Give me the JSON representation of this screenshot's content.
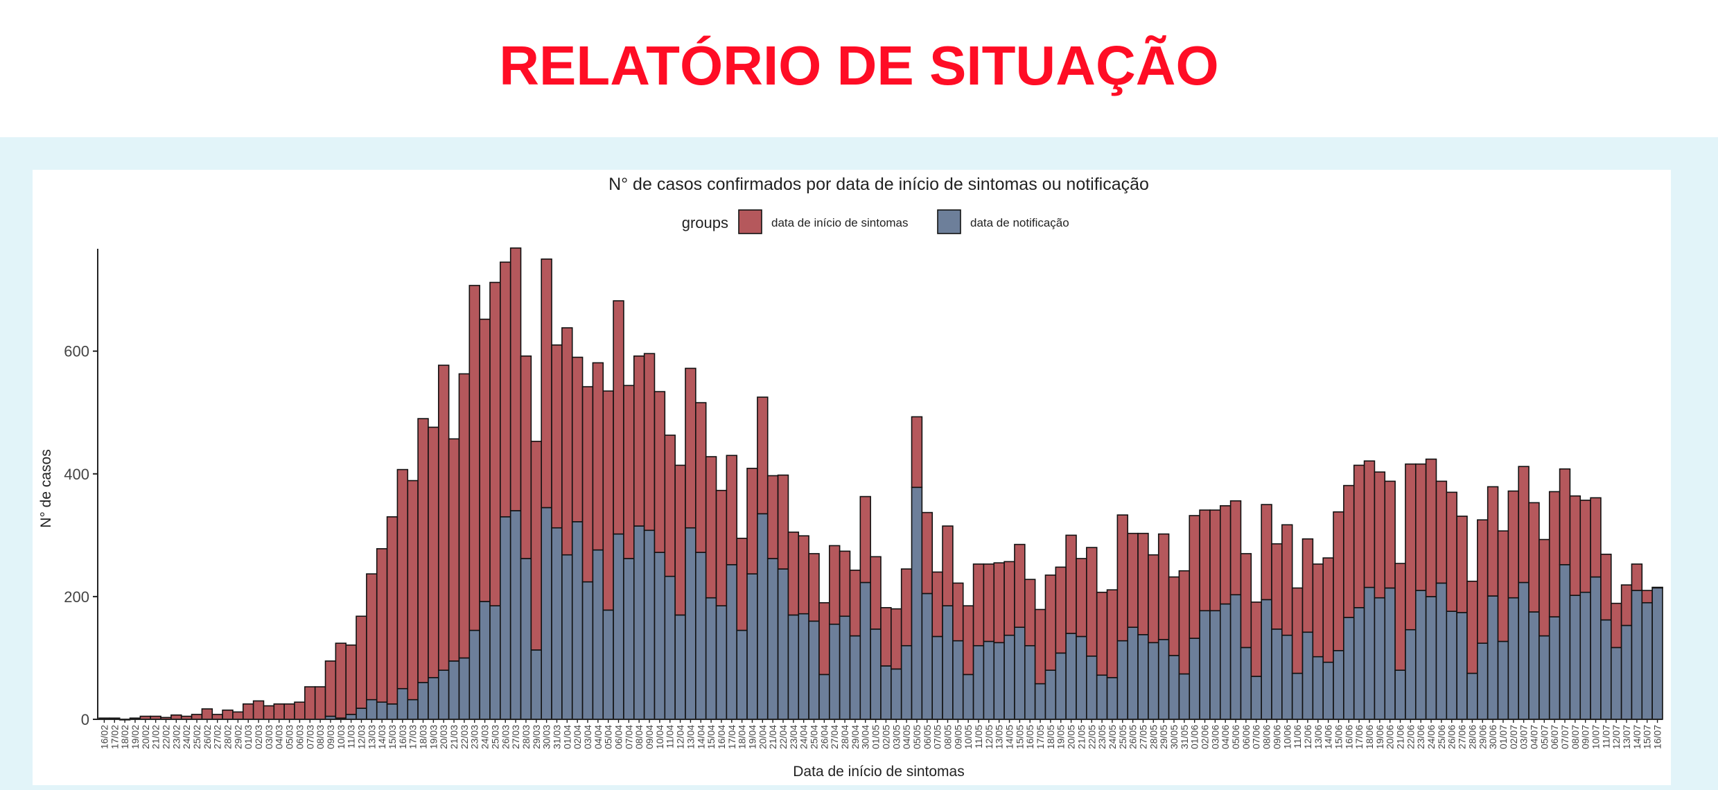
{
  "page": {
    "title": "RELATÓRIO DE SITUAÇÃO"
  },
  "colors": {
    "title": "#ff0d25",
    "band": "#e2f4f9",
    "sintomas": "#b5585c",
    "notificacao": "#6d7f9a",
    "bar_stroke": "#111111"
  },
  "chart_data": {
    "type": "bar",
    "stacked": true,
    "title": "N° de casos confirmados por data de início de sintomas ou notificação",
    "xlabel": "Data de início de sintomas",
    "ylabel": "N° de casos",
    "ylim": [
      0,
      760
    ],
    "yticks": [
      0,
      200,
      400,
      600
    ],
    "grid": false,
    "legend": {
      "position": "top",
      "title": "groups"
    },
    "categories": [
      "16/02",
      "17/02",
      "18/02",
      "19/02",
      "20/02",
      "21/02",
      "22/02",
      "23/02",
      "24/02",
      "25/02",
      "26/02",
      "27/02",
      "28/02",
      "29/02",
      "01/03",
      "02/03",
      "03/03",
      "04/03",
      "05/03",
      "06/03",
      "07/03",
      "08/03",
      "09/03",
      "10/03",
      "11/03",
      "12/03",
      "13/03",
      "14/03",
      "15/03",
      "16/03",
      "17/03",
      "18/03",
      "19/03",
      "20/03",
      "21/03",
      "22/03",
      "23/03",
      "24/03",
      "25/03",
      "26/03",
      "27/03",
      "28/03",
      "29/03",
      "30/03",
      "31/03",
      "01/04",
      "02/04",
      "03/04",
      "04/04",
      "05/04",
      "06/04",
      "07/04",
      "08/04",
      "09/04",
      "10/04",
      "11/04",
      "12/04",
      "13/04",
      "14/04",
      "15/04",
      "16/04",
      "17/04",
      "18/04",
      "19/04",
      "20/04",
      "21/04",
      "22/04",
      "23/04",
      "24/04",
      "25/04",
      "26/04",
      "27/04",
      "28/04",
      "29/04",
      "30/04",
      "01/05",
      "02/05",
      "03/05",
      "04/05",
      "05/05",
      "06/05",
      "07/05",
      "08/05",
      "09/05",
      "10/05",
      "11/05",
      "12/05",
      "13/05",
      "14/05",
      "15/05",
      "16/05",
      "17/05",
      "18/05",
      "19/05",
      "20/05",
      "21/05",
      "22/05",
      "23/05",
      "24/05",
      "25/05",
      "26/05",
      "27/05",
      "28/05",
      "29/05",
      "30/05",
      "31/05",
      "01/06",
      "02/06",
      "03/06",
      "04/06",
      "05/06",
      "06/06",
      "07/06",
      "08/06",
      "09/06",
      "10/06",
      "11/06",
      "12/06",
      "13/06",
      "14/06",
      "15/06",
      "16/06",
      "17/06",
      "18/06",
      "19/06",
      "20/06",
      "21/06",
      "22/06",
      "23/06",
      "24/06",
      "25/06",
      "26/06",
      "27/06",
      "28/06",
      "29/06",
      "30/06",
      "01/07",
      "02/07",
      "03/07",
      "04/07",
      "05/07",
      "06/07",
      "07/07",
      "08/07",
      "09/07",
      "10/07",
      "11/07",
      "12/07",
      "13/07",
      "14/07",
      "15/07",
      "16/07"
    ],
    "series": [
      {
        "name": "data de notificação",
        "color": "#6d7f9a",
        "values": [
          0,
          0,
          0,
          0,
          0,
          0,
          0,
          0,
          0,
          0,
          0,
          0,
          0,
          0,
          0,
          0,
          0,
          0,
          0,
          0,
          0,
          0,
          5,
          2,
          8,
          18,
          32,
          28,
          25,
          50,
          32,
          60,
          68,
          80,
          95,
          100,
          145,
          192,
          185,
          330,
          340,
          262,
          113,
          345,
          312,
          268,
          322,
          224,
          276,
          178,
          302,
          262,
          315,
          308,
          272,
          233,
          170,
          312,
          272,
          198,
          185,
          252,
          145,
          237,
          335,
          262,
          245,
          170,
          172,
          160,
          73,
          155,
          168,
          136,
          223,
          147,
          87,
          82,
          120,
          378,
          205,
          135,
          185,
          128,
          73,
          120,
          127,
          125,
          137,
          150,
          120,
          58,
          80,
          108,
          140,
          135,
          103,
          72,
          68,
          128,
          150,
          138,
          125,
          130,
          104,
          74,
          132,
          177,
          177,
          188,
          203,
          117,
          70,
          195,
          147,
          137,
          75,
          142,
          102,
          93,
          112,
          166,
          182,
          215,
          198,
          214,
          80,
          146,
          210,
          200,
          222,
          176,
          174,
          75,
          124,
          201,
          127,
          198,
          223,
          175,
          136,
          167,
          252,
          202,
          207,
          232,
          162,
          117,
          153,
          210,
          190,
          215
        ]
      },
      {
        "name": "data de início de sintomas",
        "color": "#b5585c",
        "values": [
          2,
          2,
          0,
          2,
          5,
          5,
          3,
          7,
          5,
          8,
          17,
          8,
          15,
          12,
          25,
          30,
          22,
          25,
          25,
          28,
          53,
          53,
          90,
          122,
          113,
          150,
          205,
          250,
          305,
          357,
          357,
          430,
          408,
          497,
          362,
          463,
          562,
          460,
          527,
          415,
          428,
          330,
          340,
          405,
          298,
          370,
          268,
          318,
          305,
          357,
          380,
          282,
          277,
          288,
          262,
          230,
          244,
          260,
          244,
          230,
          188,
          178,
          150,
          172,
          190,
          135,
          153,
          135,
          127,
          110,
          117,
          128,
          106,
          107,
          140,
          118,
          95,
          98,
          125,
          115,
          132,
          105,
          130,
          94,
          112,
          133,
          126,
          130,
          120,
          135,
          108,
          121,
          155,
          140,
          160,
          127,
          177,
          135,
          143,
          205,
          153,
          165,
          143,
          172,
          128,
          168,
          200,
          164,
          164,
          160,
          153,
          153,
          121,
          155,
          139,
          180,
          139,
          152,
          151,
          170,
          226,
          215,
          232,
          206,
          205,
          174,
          174,
          270,
          206,
          224,
          166,
          194,
          157,
          150,
          201,
          178,
          180,
          174,
          189,
          178,
          157,
          204,
          156,
          162,
          150,
          129,
          107,
          72,
          66,
          43,
          20,
          0
        ]
      }
    ]
  }
}
